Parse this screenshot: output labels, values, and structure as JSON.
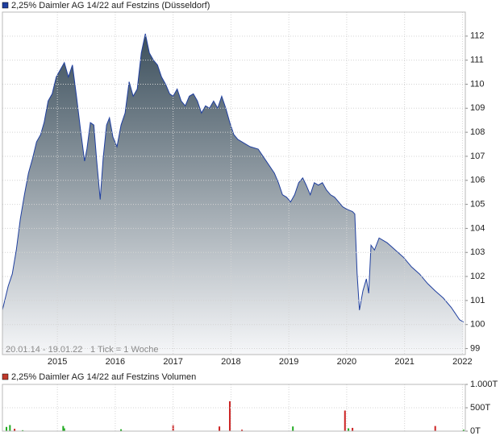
{
  "chart_data": [
    {
      "type": "area",
      "title": "2,25% Daimler AG 14/22 auf Festzins (Düsseldorf)",
      "subtitle": "20.01.14 - 19.01.22",
      "note": "1 Tick = 1 Woche",
      "color": "#1f3f9f",
      "x": [
        2014.05,
        2014.15,
        2014.22,
        2014.29,
        2014.36,
        2014.43,
        2014.5,
        2014.57,
        2014.64,
        2014.71,
        2014.77,
        2014.84,
        2014.91,
        2014.98,
        2015.05,
        2015.12,
        2015.19,
        2015.26,
        2015.33,
        2015.4,
        2015.47,
        2015.51,
        2015.57,
        2015.63,
        2015.68,
        2015.74,
        2015.79,
        2015.85,
        2015.9,
        2015.96,
        2016.03,
        2016.1,
        2016.17,
        2016.24,
        2016.31,
        2016.38,
        2016.45,
        2016.52,
        2016.59,
        2016.66,
        2016.73,
        2016.8,
        2016.87,
        2016.94,
        2017.0,
        2017.07,
        2017.14,
        2017.21,
        2017.28,
        2017.35,
        2017.42,
        2017.49,
        2017.56,
        2017.63,
        2017.7,
        2017.77,
        2017.84,
        2017.91,
        2017.98,
        2018.05,
        2018.12,
        2018.19,
        2018.33,
        2018.47,
        2018.61,
        2018.75,
        2018.82,
        2018.89,
        2018.96,
        2019.03,
        2019.1,
        2019.17,
        2019.24,
        2019.3,
        2019.37,
        2019.44,
        2019.51,
        2019.58,
        2019.65,
        2019.72,
        2019.79,
        2019.86,
        2019.93,
        2020.0,
        2020.1,
        2020.14,
        2020.18,
        2020.22,
        2020.28,
        2020.34,
        2020.38,
        2020.42,
        2020.48,
        2020.56,
        2020.63,
        2020.7,
        2020.84,
        2020.98,
        2021.12,
        2021.26,
        2021.4,
        2021.53,
        2021.67,
        2021.81,
        2021.95,
        2022.02
      ],
      "values": [
        100.6,
        101.6,
        102.1,
        103.1,
        104.4,
        105.4,
        106.3,
        106.9,
        107.6,
        107.9,
        108.4,
        109.3,
        109.6,
        110.3,
        110.6,
        110.9,
        110.3,
        110.8,
        109.5,
        108.1,
        106.8,
        107.3,
        108.4,
        108.3,
        106.8,
        105.2,
        106.9,
        108.3,
        108.6,
        107.8,
        107.4,
        108.3,
        108.8,
        110.1,
        109.5,
        109.8,
        111.3,
        112.1,
        111.3,
        111.0,
        110.8,
        110.3,
        110.0,
        109.6,
        109.5,
        109.8,
        109.3,
        109.1,
        109.5,
        109.6,
        109.3,
        108.8,
        109.1,
        109.0,
        109.3,
        109.0,
        109.5,
        109.0,
        108.4,
        107.9,
        107.7,
        107.6,
        107.4,
        107.3,
        106.8,
        106.3,
        105.9,
        105.4,
        105.3,
        105.1,
        105.4,
        105.9,
        106.1,
        105.8,
        105.4,
        105.9,
        105.8,
        105.9,
        105.6,
        105.4,
        105.3,
        105.1,
        104.9,
        104.8,
        104.7,
        104.6,
        102.1,
        100.6,
        101.4,
        101.9,
        101.3,
        103.3,
        103.1,
        103.6,
        103.5,
        103.4,
        103.1,
        102.8,
        102.4,
        102.1,
        101.7,
        101.4,
        101.1,
        100.7,
        100.2,
        100.1
      ],
      "xlim": [
        2014.05,
        2022.05
      ],
      "ylim": [
        98.75,
        113
      ],
      "xticks": [
        2015,
        2016,
        2017,
        2018,
        2019,
        2020,
        2021,
        2022
      ],
      "yticks": [
        99,
        100,
        101,
        102,
        103,
        104,
        105,
        106,
        107,
        108,
        109,
        110,
        111,
        112
      ],
      "grid": true
    },
    {
      "type": "bar",
      "title": "2,25% Daimler AG 14/22 auf Festzins Volumen",
      "color": "#c0392b",
      "x": [
        2014.12,
        2014.18,
        2014.26,
        2014.4,
        2015.1,
        2015.12,
        2016.1,
        2017.0,
        2017.8,
        2017.98,
        2018.19,
        2019.07,
        2019.97,
        2020.03,
        2020.1,
        2021.53,
        2022.02
      ],
      "values": [
        90,
        130,
        50,
        20,
        110,
        60,
        40,
        130,
        100,
        640,
        30,
        100,
        440,
        60,
        70,
        110,
        30
      ],
      "colors": [
        "#22aa22",
        "#22aa22",
        "#cc2222",
        "#22aa22",
        "#22aa22",
        "#22aa22",
        "#22aa22",
        "#cc2222",
        "#cc2222",
        "#cc2222",
        "#cc2222",
        "#22aa22",
        "#cc2222",
        "#22aa22",
        "#cc2222",
        "#cc2222",
        "#22aa22"
      ],
      "xlim": [
        2014.05,
        2022.05
      ],
      "ylim": [
        0,
        1000
      ],
      "yticks": [
        {
          "value": 0,
          "label": "0T"
        },
        {
          "value": 500,
          "label": "500T"
        },
        {
          "value": 1000,
          "label": "1.000T"
        }
      ],
      "grid": true
    }
  ]
}
